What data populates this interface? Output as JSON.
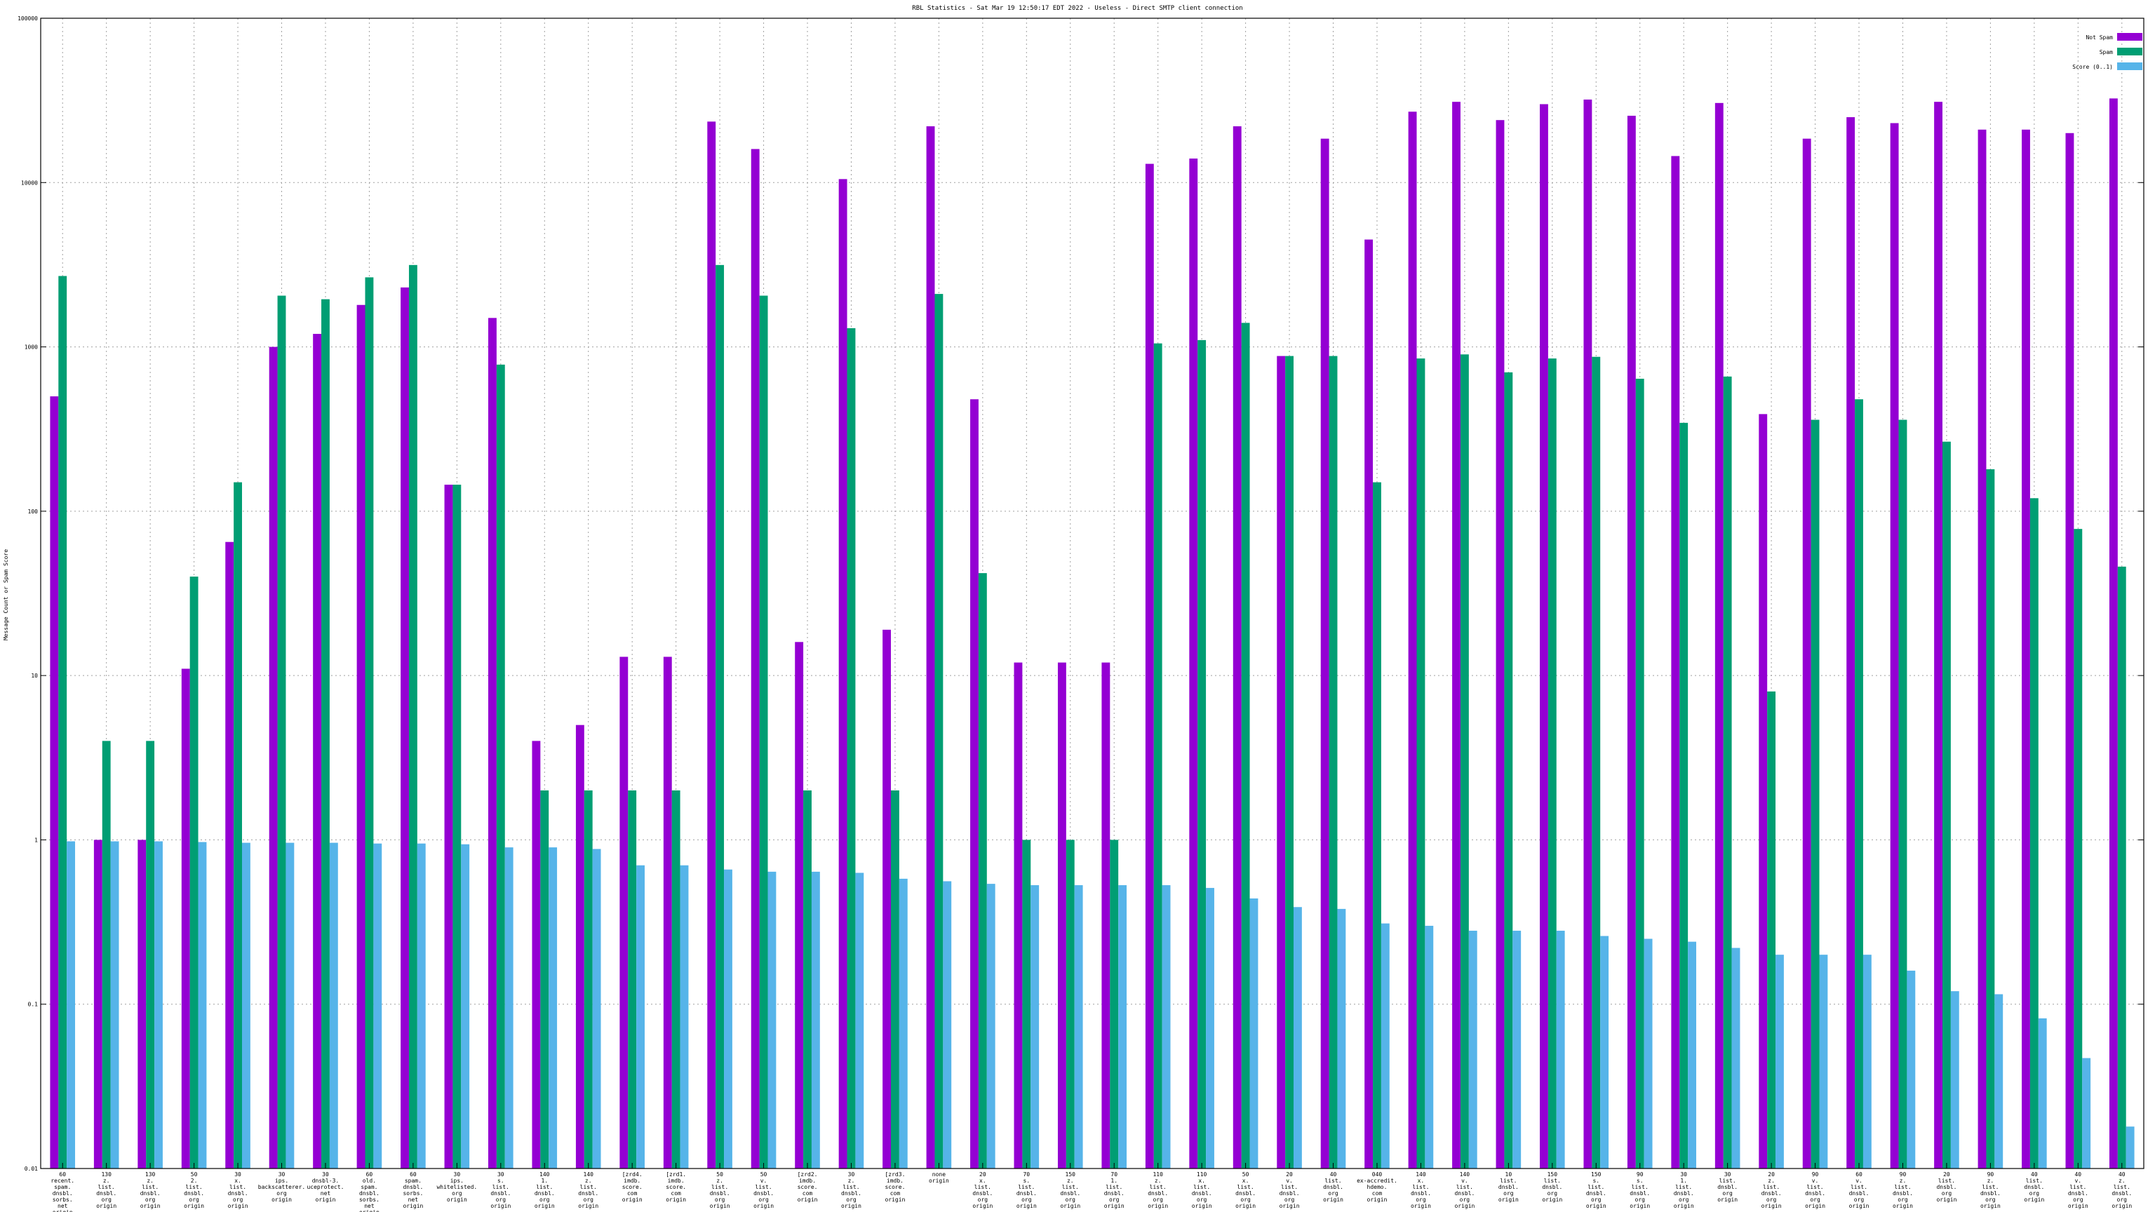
{
  "chart_data": {
    "type": "bar",
    "title": "RBL Statistics - Sat Mar 19 12:50:17 EDT 2022 - Useless - Direct SMTP client connection",
    "xlabel": "",
    "ylabel": "Message Count or Spam Score",
    "yscale": "log",
    "ylim": [
      0.01,
      100000
    ],
    "yticks": [
      {
        "value": 0.01,
        "label": "0.01"
      },
      {
        "value": 0.1,
        "label": "0.1"
      },
      {
        "value": 1,
        "label": "1"
      },
      {
        "value": 10,
        "label": "10"
      },
      {
        "value": 100,
        "label": "100"
      },
      {
        "value": 1000,
        "label": "1000"
      },
      {
        "value": 10000,
        "label": "10000"
      },
      {
        "value": 100000,
        "label": "100000"
      }
    ],
    "grid": true,
    "legend_position": "top-right",
    "colors": [
      "#9400d3",
      "#009e73",
      "#56b4e9"
    ],
    "categories": [
      "60 recent. spam. dnsbl. sorbs. net origin",
      "130 z. list. dnsbl. org origin",
      "130 z. list. dnsbl. org origin",
      "50 2. list. dnsbl. org origin",
      "30 x. list. dnsbl. org origin",
      "30 ips. backscatterer. org origin",
      "30 dnsbl-3. uceprotect. net origin",
      "60 old. spam. dnsbl. sorbs. net origin",
      "60 spam. dnsbl. sorbs. net origin",
      "30 ips. whitelisted. org origin",
      "30 s. list. dnsbl. org origin",
      "140 1. list. dnsbl. org origin",
      "140 z. list. dnsbl. org origin",
      "[zrd4. imdb. score. com origin",
      "[zrd1. imdb. score. com origin",
      "50 z. list. dnsbl. org origin",
      "50 v. list. dnsbl. org origin",
      "[zrd2. imdb. score. com origin",
      "30 z. list. dnsbl. org origin",
      "[zrd3. imdb. score. com origin",
      "none origin",
      "20 x. list. dnsbl. org origin",
      "70 s. list. dnsbl. org origin",
      "150 z. list. dnsbl. org origin",
      "70 1. list. dnsbl. org origin",
      "110 z. list. dnsbl. org origin",
      "110 x. list. dnsbl. org origin",
      "50 x. list. dnsbl. org origin",
      "20 v. list. dnsbl. org origin",
      "40 list. dnsbl. org origin",
      "040 ex-accredit. hdemo. com origin",
      "140 x. list. dnsbl. org origin",
      "140 v. list. dnsbl. org origin",
      "10 list. dnsbl. org origin",
      "150 list. dnsbl. org origin",
      "150 s. list. dnsbl. org origin",
      "90 s. list. dnsbl. org origin",
      "30 1. list. dnsbl. org origin",
      "30 list. dnsbl. org origin",
      "20 z. list. dnsbl. org origin",
      "90 v. list. dnsbl. org origin",
      "60 v. list. dnsbl. org origin",
      "90 z. list. dnsbl. org origin",
      "20 list. dnsbl. org origin",
      "90 z. list. dnsbl. org origin",
      "40 list. dnsbl. org origin",
      "40 v. list. dnsbl. org origin",
      "40 z. list. dnsbl. org origin"
    ],
    "series": [
      {
        "name": "Not Spam",
        "values": [
          500,
          1,
          1,
          11,
          65,
          1000,
          1200,
          1800,
          2300,
          145,
          1500,
          4,
          5,
          13,
          13,
          23500,
          16000,
          16,
          10500,
          19,
          22000,
          480,
          12,
          12,
          12,
          13000,
          14000,
          22000,
          880,
          18500,
          4500,
          27000,
          31000,
          24000,
          30000,
          32000,
          25500,
          14500,
          30500,
          390,
          18500,
          25000,
          23000,
          31000,
          21000,
          21000,
          20000,
          32500
        ]
      },
      {
        "name": "Spam",
        "values": [
          2700,
          4,
          4,
          40,
          150,
          2050,
          1950,
          2650,
          3150,
          145,
          780,
          2,
          2,
          2,
          2,
          3150,
          2050,
          2,
          1300,
          2,
          2100,
          42,
          1,
          1,
          1,
          1050,
          1100,
          1400,
          880,
          880,
          150,
          850,
          900,
          700,
          850,
          870,
          640,
          345,
          660,
          8,
          360,
          480,
          360,
          265,
          180,
          120,
          78,
          46
        ]
      },
      {
        "name": "Score (0..1)",
        "values": [
          0.98,
          0.98,
          0.98,
          0.97,
          0.96,
          0.96,
          0.96,
          0.95,
          0.95,
          0.94,
          0.9,
          0.9,
          0.88,
          0.7,
          0.7,
          0.66,
          0.64,
          0.64,
          0.63,
          0.58,
          0.56,
          0.54,
          0.53,
          0.53,
          0.53,
          0.53,
          0.51,
          0.44,
          0.39,
          0.38,
          0.31,
          0.3,
          0.28,
          0.28,
          0.28,
          0.26,
          0.25,
          0.24,
          0.22,
          0.2,
          0.2,
          0.2,
          0.16,
          0.12,
          0.115,
          0.082,
          0.047,
          0.018
        ]
      }
    ]
  }
}
